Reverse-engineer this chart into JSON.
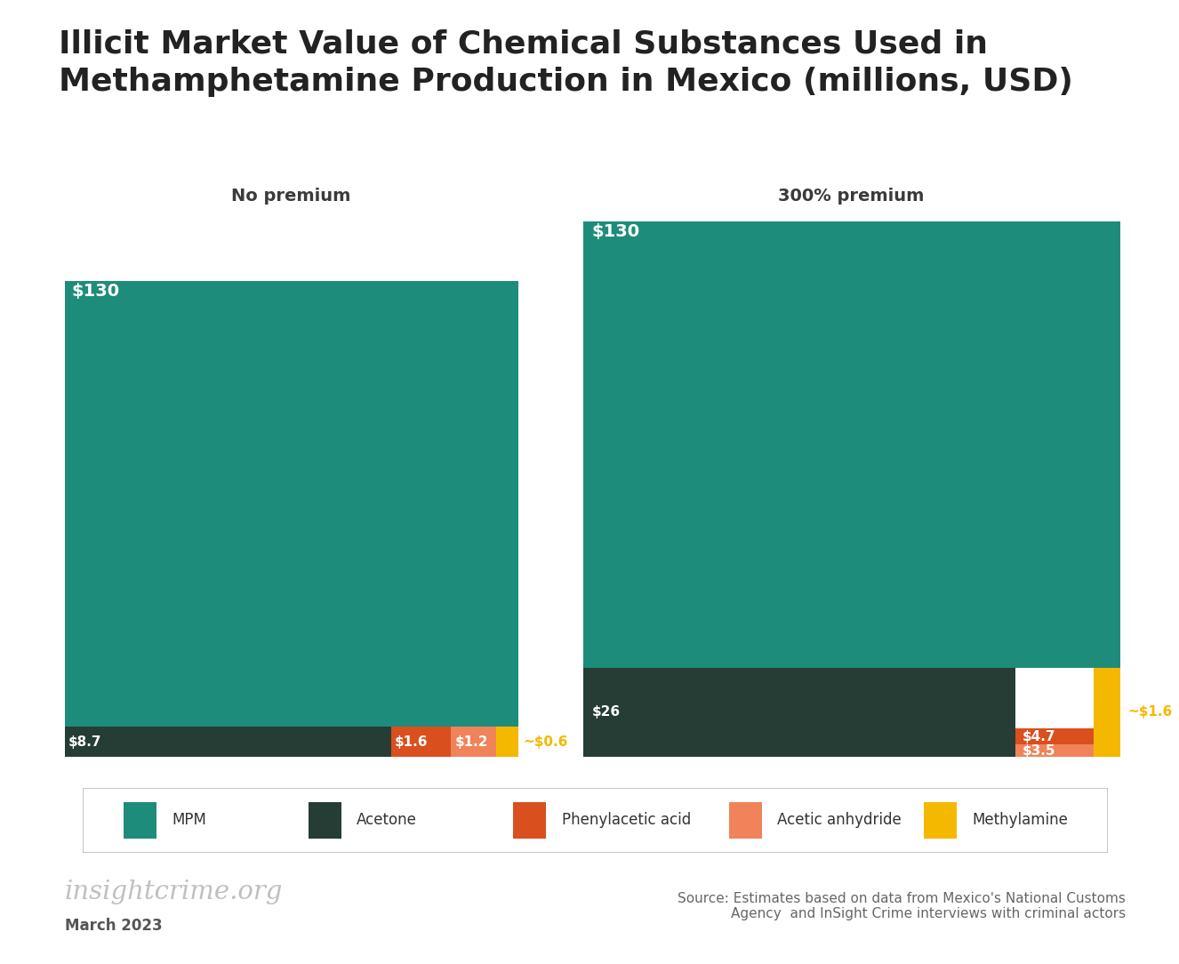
{
  "title_line1": "Illicit Market Value of Chemical Substances Used in",
  "title_line2": "Methamphetamine Production in Mexico (millions, USD)",
  "background_color": "#ffffff",
  "subtitle_left": "No premium",
  "subtitle_right": "300% premium",
  "colors": {
    "MPM": "#1e8c7a",
    "Acetone": "#253d35",
    "Phenylacetic_acid": "#d94f1e",
    "Acetic_anhydride": "#f0835a",
    "Methylamine": "#f5b800"
  },
  "left_chart": {
    "MPM": 130,
    "Acetone": 8.7,
    "Phenylacetic_acid": 1.6,
    "Acetic_anhydride": 1.2,
    "Methylamine": 0.6
  },
  "right_chart": {
    "MPM": 130,
    "Acetone": 26,
    "Phenylacetic_acid": 4.7,
    "Acetic_anhydride": 3.5,
    "Methylamine": 1.6
  },
  "legend_labels": [
    "MPM",
    "Acetone",
    "Phenylacetic acid",
    "Acetic anhydride",
    "Methylamine"
  ],
  "legend_color_keys": [
    "MPM",
    "Acetone",
    "Phenylacetic_acid",
    "Acetic_anhydride",
    "Methylamine"
  ],
  "source_text": "Source: Estimates based on data from Mexico's National Customs\nAgency  and InSight Crime interviews with criminal actors",
  "brand_text": "insightcrime.org",
  "date_text": "March 2023",
  "left_label_MPM": "$130",
  "left_label_Acetone": "$8.7",
  "left_label_Phenylacetic_acid": "$1.6",
  "left_label_Acetic_anhydride": "$1.2",
  "left_label_Methylamine": "~$0.6",
  "right_label_MPM": "$130",
  "right_label_Acetone": "$26",
  "right_label_Phenylacetic_acid": "$4.7",
  "right_label_Acetic_anhydride": "$3.5",
  "right_label_Methylamine": "~$1.6"
}
